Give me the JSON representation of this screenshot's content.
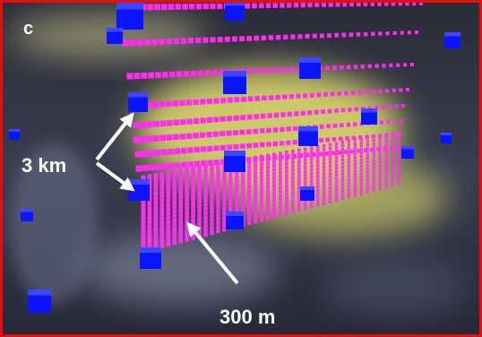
{
  "panel_label": "c",
  "annotations": {
    "vertical_spacing": "3 km",
    "horizontal_spacing": "300 m"
  }
}
